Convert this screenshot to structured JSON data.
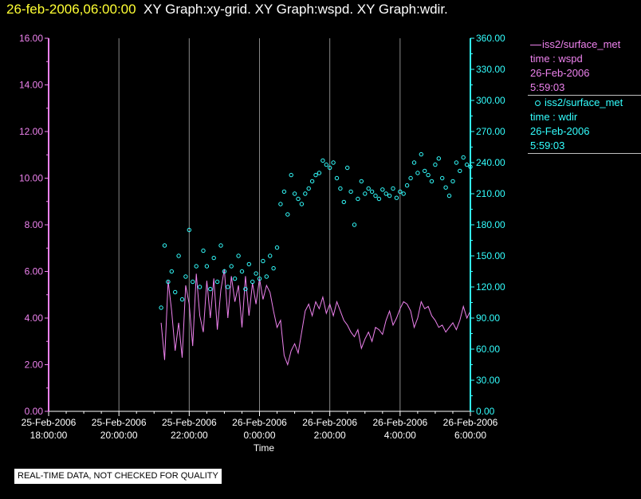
{
  "title": {
    "datetime": "26-feb-2006,06:00:00",
    "graphs": "XY Graph:xy-grid.  XY Graph:wspd.  XY Graph:wdir."
  },
  "legend": {
    "wspd": {
      "series": "iss2/surface_met",
      "axes": "time : wspd",
      "date": "26-Feb-2006",
      "time": "5:59:03"
    },
    "wdir": {
      "series": "iss2/surface_met",
      "axes": "time : wdir",
      "date": "26-Feb-2006",
      "time": "5:59:03"
    }
  },
  "notice": "REAL-TIME DATA, NOT CHECKED FOR QUALITY",
  "colors": {
    "wspd": "#ee82ee",
    "wdir": "#33ffff",
    "title_date": "#ffff33",
    "grid": "#888888"
  },
  "chart_data": {
    "type": "line",
    "xlabel": "Time",
    "x_unit": "hours from 25-Feb-2006 18:00",
    "xlim": [
      0,
      12
    ],
    "x_ticks": [
      {
        "t": 0,
        "line1": "25-Feb-2006",
        "line2": "18:00:00"
      },
      {
        "t": 2,
        "line1": "25-Feb-2006",
        "line2": "20:00:00"
      },
      {
        "t": 4,
        "line1": "25-Feb-2006",
        "line2": "22:00:00"
      },
      {
        "t": 6,
        "line1": "26-Feb-2006",
        "line2": "0:00:00"
      },
      {
        "t": 8,
        "line1": "26-Feb-2006",
        "line2": "2:00:00"
      },
      {
        "t": 10,
        "line1": "26-Feb-2006",
        "line2": "4:00:00"
      },
      {
        "t": 12,
        "line1": "26-Feb-2006",
        "line2": "6:00:00"
      }
    ],
    "y_left": {
      "min": 0,
      "max": 16,
      "ticks": [
        "0.00",
        "2.00",
        "4.00",
        "6.00",
        "8.00",
        "10.00",
        "12.00",
        "14.00",
        "16.00"
      ]
    },
    "y_right": {
      "min": 0,
      "max": 360,
      "ticks": [
        "0.00",
        "30.00",
        "60.00",
        "90.00",
        "120.00",
        "150.00",
        "180.00",
        "210.00",
        "240.00",
        "270.00",
        "300.00",
        "330.00",
        "360.00"
      ]
    },
    "grid": "vertical",
    "series": [
      {
        "name": "iss2/surface_met time : wspd",
        "axis": "left",
        "style": "line",
        "x": [
          3.2,
          3.3,
          3.4,
          3.5,
          3.6,
          3.7,
          3.8,
          3.9,
          4.0,
          4.1,
          4.2,
          4.3,
          4.4,
          4.5,
          4.6,
          4.7,
          4.8,
          4.9,
          5.0,
          5.1,
          5.2,
          5.3,
          5.4,
          5.5,
          5.6,
          5.7,
          5.8,
          5.9,
          6.0,
          6.1,
          6.2,
          6.3,
          6.4,
          6.5,
          6.6,
          6.7,
          6.8,
          6.9,
          7.0,
          7.1,
          7.2,
          7.3,
          7.4,
          7.5,
          7.6,
          7.7,
          7.8,
          7.9,
          8.0,
          8.1,
          8.2,
          8.3,
          8.4,
          8.5,
          8.6,
          8.7,
          8.8,
          8.9,
          9.0,
          9.1,
          9.2,
          9.3,
          9.4,
          9.5,
          9.6,
          9.7,
          9.8,
          9.9,
          10.0,
          10.1,
          10.2,
          10.3,
          10.4,
          10.5,
          10.6,
          10.7,
          10.8,
          10.9,
          11.0,
          11.1,
          11.2,
          11.3,
          11.4,
          11.5,
          11.6,
          11.7,
          11.8,
          11.9,
          12.0
        ],
        "y": [
          3.8,
          2.2,
          5.6,
          4.3,
          2.6,
          3.8,
          2.3,
          5.4,
          4.6,
          2.8,
          5.9,
          4.1,
          3.4,
          5.6,
          4.0,
          5.7,
          3.5,
          5.2,
          6.1,
          4.0,
          5.8,
          4.7,
          5.4,
          3.6,
          5.8,
          4.1,
          5.5,
          4.6,
          5.7,
          4.8,
          5.4,
          5.1,
          4.3,
          3.6,
          3.9,
          2.4,
          2.0,
          2.6,
          2.9,
          2.5,
          3.4,
          4.3,
          4.6,
          4.1,
          4.7,
          4.4,
          4.9,
          4.2,
          4.6,
          4.1,
          4.7,
          4.3,
          3.9,
          3.7,
          3.4,
          3.2,
          3.5,
          2.7,
          3.1,
          3.4,
          3.0,
          3.6,
          3.5,
          3.3,
          3.9,
          4.3,
          3.7,
          4.0,
          4.4,
          4.7,
          4.6,
          4.3,
          3.6,
          4.0,
          4.7,
          4.4,
          4.5,
          4.1,
          3.9,
          3.6,
          3.7,
          3.4,
          3.6,
          3.8,
          3.5,
          3.9,
          4.5,
          4.0,
          4.3
        ]
      },
      {
        "name": "iss2/surface_met time : wdir",
        "axis": "right",
        "style": "scatter",
        "x": [
          3.2,
          3.3,
          3.4,
          3.5,
          3.6,
          3.7,
          3.8,
          3.9,
          4.0,
          4.1,
          4.2,
          4.3,
          4.4,
          4.5,
          4.6,
          4.7,
          4.8,
          4.9,
          5.0,
          5.1,
          5.2,
          5.3,
          5.4,
          5.5,
          5.6,
          5.7,
          5.8,
          5.9,
          6.0,
          6.1,
          6.2,
          6.3,
          6.4,
          6.5,
          6.6,
          6.7,
          6.8,
          6.9,
          7.0,
          7.1,
          7.2,
          7.3,
          7.4,
          7.5,
          7.6,
          7.7,
          7.8,
          7.9,
          8.0,
          8.1,
          8.2,
          8.3,
          8.4,
          8.5,
          8.6,
          8.7,
          8.8,
          8.9,
          9.0,
          9.1,
          9.2,
          9.3,
          9.4,
          9.5,
          9.6,
          9.7,
          9.8,
          9.9,
          10.0,
          10.1,
          10.2,
          10.3,
          10.4,
          10.5,
          10.6,
          10.7,
          10.8,
          10.9,
          11.0,
          11.1,
          11.2,
          11.3,
          11.4,
          11.5,
          11.6,
          11.7,
          11.8,
          11.9,
          12.0
        ],
        "y": [
          100,
          160,
          125,
          135,
          115,
          150,
          108,
          130,
          175,
          125,
          140,
          120,
          155,
          140,
          118,
          148,
          125,
          160,
          135,
          120,
          140,
          128,
          150,
          135,
          118,
          142,
          125,
          133,
          128,
          145,
          130,
          150,
          138,
          158,
          200,
          212,
          190,
          228,
          210,
          205,
          200,
          210,
          215,
          222,
          228,
          230,
          242,
          238,
          235,
          240,
          225,
          215,
          202,
          235,
          212,
          180,
          205,
          222,
          210,
          215,
          212,
          208,
          205,
          214,
          210,
          208,
          215,
          206,
          212,
          210,
          218,
          225,
          240,
          230,
          248,
          232,
          228,
          222,
          238,
          244,
          225,
          216,
          208,
          222,
          240,
          232,
          245,
          238,
          236
        ]
      }
    ]
  }
}
